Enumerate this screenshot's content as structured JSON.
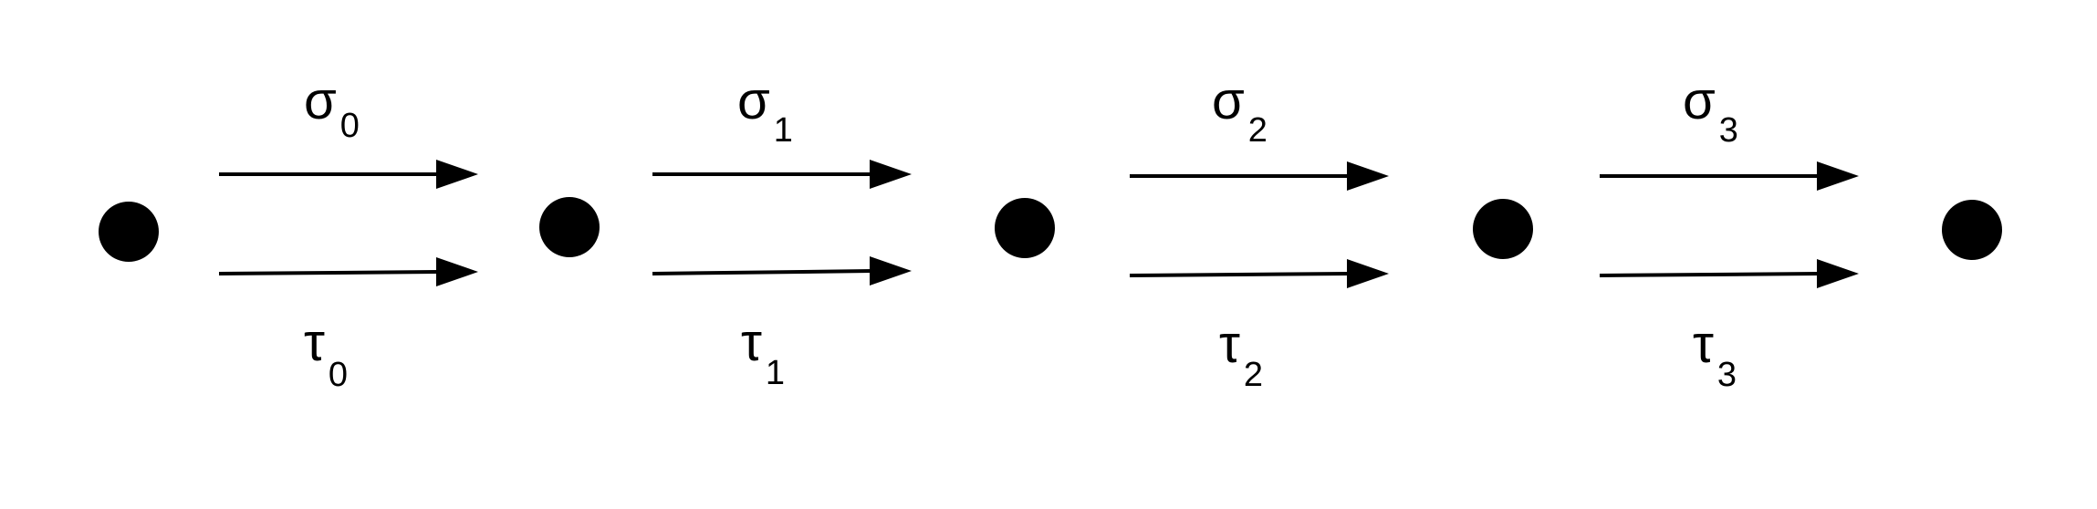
{
  "diagram": {
    "node_count": 5,
    "edges": [
      {
        "top_label": {
          "symbol": "σ",
          "subscript": "0"
        },
        "bottom_label": {
          "symbol": "τ",
          "subscript": "0"
        }
      },
      {
        "top_label": {
          "symbol": "σ",
          "subscript": "1"
        },
        "bottom_label": {
          "symbol": "τ",
          "subscript": "1"
        }
      },
      {
        "top_label": {
          "symbol": "σ",
          "subscript": "2"
        },
        "bottom_label": {
          "symbol": "τ",
          "subscript": "2"
        }
      },
      {
        "top_label": {
          "symbol": "σ",
          "subscript": "3"
        },
        "bottom_label": {
          "symbol": "τ",
          "subscript": "3"
        }
      }
    ],
    "colors": {
      "ink": "#000000",
      "background": "#ffffff"
    }
  }
}
